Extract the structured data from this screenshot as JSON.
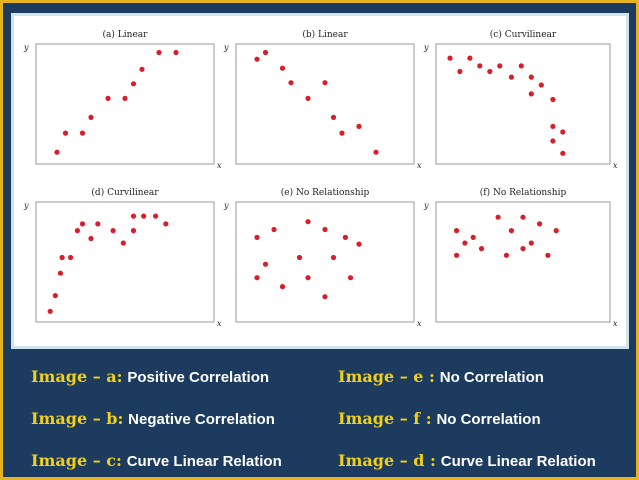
{
  "chart_data": [
    {
      "type": "scatter",
      "title": "(a) Linear",
      "xlabel": "x",
      "ylabel": "y",
      "xlim": [
        0,
        10
      ],
      "ylim": [
        0,
        10
      ],
      "points": [
        [
          1,
          0.7
        ],
        [
          1.5,
          2.4
        ],
        [
          2.5,
          2.4
        ],
        [
          3,
          3.8
        ],
        [
          4,
          5.5
        ],
        [
          5,
          5.5
        ],
        [
          5.5,
          6.8
        ],
        [
          6,
          8.1
        ],
        [
          7,
          9.6
        ],
        [
          8,
          9.6
        ]
      ]
    },
    {
      "type": "scatter",
      "title": "(b) Linear",
      "xlabel": "x",
      "ylabel": "y",
      "xlim": [
        0,
        10
      ],
      "ylim": [
        0,
        10
      ],
      "points": [
        [
          1,
          9
        ],
        [
          1.5,
          9.6
        ],
        [
          2.5,
          8.2
        ],
        [
          3,
          6.9
        ],
        [
          4,
          5.5
        ],
        [
          5,
          6.9
        ],
        [
          5.5,
          3.8
        ],
        [
          6,
          2.4
        ],
        [
          7,
          3
        ],
        [
          8,
          0.7
        ]
      ]
    },
    {
      "type": "scatter",
      "title": "(c) Curvilinear",
      "xlabel": "x",
      "ylabel": "y",
      "xlim": [
        0,
        10
      ],
      "ylim": [
        0,
        10
      ],
      "points": [
        [
          0.6,
          9.1
        ],
        [
          1.2,
          7.9
        ],
        [
          1.8,
          9.1
        ],
        [
          2.4,
          8.4
        ],
        [
          3,
          7.9
        ],
        [
          3.6,
          8.4
        ],
        [
          4.3,
          7.4
        ],
        [
          4.9,
          8.4
        ],
        [
          5.5,
          7.4
        ],
        [
          5.5,
          5.9
        ],
        [
          6.1,
          6.7
        ],
        [
          6.8,
          5.4
        ],
        [
          6.8,
          3.0
        ],
        [
          7.4,
          2.5
        ],
        [
          6.8,
          1.7
        ],
        [
          7.4,
          0.6
        ]
      ]
    },
    {
      "type": "scatter",
      "title": "(d) Curvilinear",
      "xlabel": "x",
      "ylabel": "y",
      "xlim": [
        0,
        10
      ],
      "ylim": [
        0,
        10
      ],
      "points": [
        [
          0.6,
          0.6
        ],
        [
          0.9,
          2.0
        ],
        [
          1.2,
          4.0
        ],
        [
          1.3,
          5.4
        ],
        [
          1.8,
          5.4
        ],
        [
          2.2,
          7.8
        ],
        [
          2.5,
          8.4
        ],
        [
          3.0,
          7.1
        ],
        [
          3.4,
          8.4
        ],
        [
          4.3,
          7.8
        ],
        [
          4.9,
          6.7
        ],
        [
          5.5,
          7.8
        ],
        [
          5.5,
          9.1
        ],
        [
          6.1,
          9.1
        ],
        [
          6.8,
          9.1
        ],
        [
          7.4,
          8.4
        ]
      ]
    },
    {
      "type": "scatter",
      "title": "(e) No Relationship",
      "xlabel": "x",
      "ylabel": "y",
      "xlim": [
        0,
        10
      ],
      "ylim": [
        0,
        10
      ],
      "points": [
        [
          1,
          7.2
        ],
        [
          1,
          3.6
        ],
        [
          1.5,
          4.8
        ],
        [
          2,
          7.9
        ],
        [
          2.5,
          2.8
        ],
        [
          3.5,
          5.4
        ],
        [
          4,
          8.6
        ],
        [
          4,
          3.6
        ],
        [
          5,
          1.9
        ],
        [
          5,
          7.9
        ],
        [
          5.5,
          5.4
        ],
        [
          6.2,
          7.2
        ],
        [
          6.5,
          3.6
        ],
        [
          7,
          6.6
        ]
      ]
    },
    {
      "type": "scatter",
      "title": "(f) No Relationship",
      "xlabel": "x",
      "ylabel": "y",
      "xlim": [
        0,
        10
      ],
      "ylim": [
        0,
        10
      ],
      "points": [
        [
          1,
          7.8
        ],
        [
          1,
          5.6
        ],
        [
          1.5,
          6.7
        ],
        [
          2,
          7.2
        ],
        [
          2.5,
          6.2
        ],
        [
          3.5,
          9.0
        ],
        [
          4,
          5.6
        ],
        [
          4.3,
          7.8
        ],
        [
          5,
          6.2
        ],
        [
          5,
          9.0
        ],
        [
          5.5,
          6.7
        ],
        [
          6,
          8.4
        ],
        [
          6.5,
          5.6
        ],
        [
          7,
          7.8
        ]
      ]
    }
  ],
  "captions": [
    {
      "label": "Image – a:",
      "text": "Positive Correlation"
    },
    {
      "label": "Image – b:",
      "text": "Negative Correlation"
    },
    {
      "label": "Image – c:",
      "text": "Curve Linear Relation"
    },
    {
      "label": "Image – e :",
      "text": "No Correlation"
    },
    {
      "label": "Image – f :",
      "text": "No Correlation"
    },
    {
      "label": "Image – d :",
      "text": "Curve Linear Relation"
    }
  ],
  "colors": {
    "point": "#d91e2a",
    "label": "#f2d017",
    "background": "#1c3b5e",
    "border": "#e6b422"
  }
}
